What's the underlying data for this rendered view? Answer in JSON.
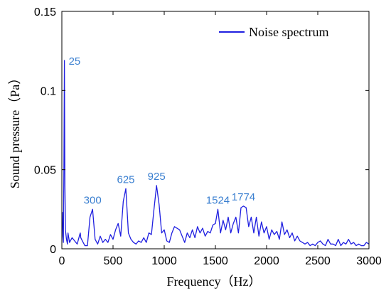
{
  "chart_data": {
    "type": "line",
    "title": "",
    "xlabel": "Frequency（Hz）",
    "ylabel": "Sound pressure（Pa）",
    "xlim": [
      0,
      3000
    ],
    "ylim": [
      0,
      0.15
    ],
    "xticks": [
      0,
      500,
      1000,
      1500,
      2000,
      2500,
      3000
    ],
    "xtick_labels": [
      "0",
      "500",
      "1000",
      "1500",
      "2000",
      "2500",
      "3000"
    ],
    "yticks": [
      0,
      0.05,
      0.1,
      0.15
    ],
    "ytick_labels": [
      "0",
      "0.05",
      "0.1",
      "0.15"
    ],
    "grid": false,
    "legend": {
      "position": "top-right"
    },
    "series": [
      {
        "name": "Noise spectrum",
        "color": "#1f1fe0",
        "x": [
          0,
          5,
          10,
          15,
          20,
          25,
          30,
          35,
          45,
          55,
          60,
          75,
          100,
          125,
          150,
          175,
          180,
          185,
          200,
          225,
          250,
          275,
          300,
          325,
          350,
          375,
          400,
          425,
          450,
          475,
          500,
          525,
          550,
          575,
          600,
          625,
          650,
          675,
          700,
          725,
          750,
          775,
          800,
          825,
          850,
          875,
          900,
          925,
          950,
          975,
          1000,
          1025,
          1050,
          1075,
          1100,
          1125,
          1150,
          1175,
          1200,
          1225,
          1250,
          1275,
          1300,
          1325,
          1350,
          1375,
          1400,
          1425,
          1450,
          1475,
          1500,
          1524,
          1550,
          1575,
          1600,
          1625,
          1650,
          1675,
          1700,
          1725,
          1750,
          1774,
          1800,
          1825,
          1850,
          1875,
          1900,
          1925,
          1950,
          1975,
          2000,
          2025,
          2050,
          2075,
          2100,
          2125,
          2150,
          2175,
          2200,
          2225,
          2250,
          2275,
          2300,
          2325,
          2350,
          2375,
          2400,
          2425,
          2450,
          2475,
          2500,
          2525,
          2550,
          2575,
          2600,
          2625,
          2650,
          2675,
          2700,
          2725,
          2750,
          2775,
          2800,
          2825,
          2850,
          2875,
          2900,
          2925,
          2950,
          2975,
          3000
        ],
        "y": [
          0.022,
          0.023,
          0.008,
          0.004,
          0.05,
          0.119,
          0.04,
          0.012,
          0.006,
          0.003,
          0.01,
          0.004,
          0.007,
          0.005,
          0.003,
          0.009,
          0.01,
          0.007,
          0.005,
          0.002,
          0.002,
          0.02,
          0.025,
          0.006,
          0.003,
          0.008,
          0.004,
          0.006,
          0.004,
          0.009,
          0.006,
          0.012,
          0.016,
          0.008,
          0.03,
          0.038,
          0.01,
          0.006,
          0.004,
          0.003,
          0.005,
          0.004,
          0.007,
          0.004,
          0.01,
          0.009,
          0.025,
          0.04,
          0.028,
          0.01,
          0.012,
          0.005,
          0.004,
          0.01,
          0.014,
          0.013,
          0.012,
          0.008,
          0.004,
          0.01,
          0.007,
          0.012,
          0.007,
          0.014,
          0.01,
          0.013,
          0.008,
          0.011,
          0.01,
          0.015,
          0.016,
          0.025,
          0.01,
          0.018,
          0.012,
          0.02,
          0.01,
          0.016,
          0.02,
          0.01,
          0.026,
          0.027,
          0.026,
          0.014,
          0.02,
          0.01,
          0.02,
          0.008,
          0.017,
          0.01,
          0.014,
          0.006,
          0.012,
          0.009,
          0.011,
          0.006,
          0.017,
          0.009,
          0.012,
          0.007,
          0.01,
          0.005,
          0.008,
          0.005,
          0.004,
          0.003,
          0.004,
          0.002,
          0.003,
          0.002,
          0.004,
          0.005,
          0.003,
          0.002,
          0.006,
          0.003,
          0.003,
          0.002,
          0.006,
          0.002,
          0.004,
          0.003,
          0.006,
          0.003,
          0.004,
          0.002,
          0.003,
          0.002,
          0.002,
          0.004,
          0.003
        ]
      }
    ],
    "annotations": [
      {
        "text": "25",
        "x": 25,
        "y": 0.119
      },
      {
        "text": "300",
        "x": 300,
        "y": 0.025
      },
      {
        "text": "625",
        "x": 625,
        "y": 0.038
      },
      {
        "text": "925",
        "x": 925,
        "y": 0.04
      },
      {
        "text": "1524",
        "x": 1524,
        "y": 0.025
      },
      {
        "text": "1774",
        "x": 1774,
        "y": 0.027
      }
    ],
    "annotation_color": "#3a7fd0"
  }
}
